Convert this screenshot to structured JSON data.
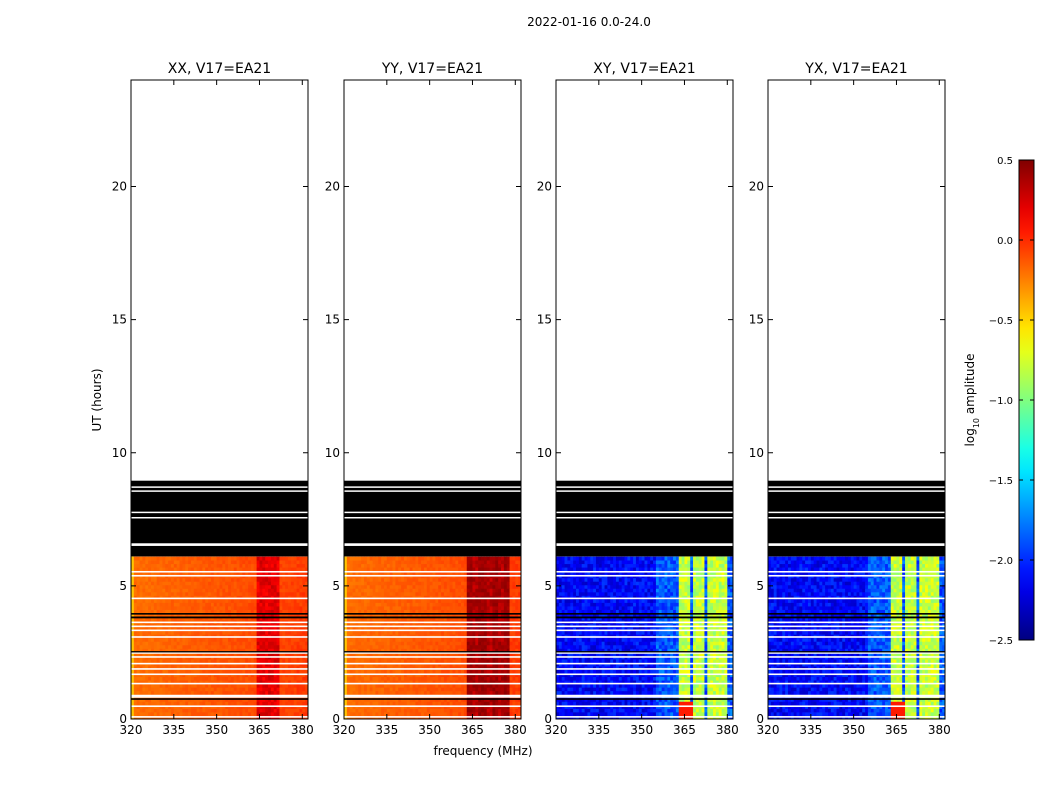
{
  "chart_data": {
    "type": "heatmap",
    "suptitle": "2022-01-16 0.0-24.0",
    "xlabel": "frequency (MHz)",
    "ylabel": "UT (hours)",
    "xlim": [
      320,
      382
    ],
    "ylim": [
      0,
      24
    ],
    "xticks": [
      320,
      335,
      350,
      365,
      380
    ],
    "yticks": [
      0,
      5,
      10,
      15,
      20
    ],
    "colorbar": {
      "label": "log10 amplitude",
      "label_main": "log",
      "label_sub": "10",
      "label_tail": " amplitude",
      "min": -2.5,
      "max": 0.5,
      "ticks": [
        0.5,
        0.0,
        -0.5,
        -1.0,
        -1.5,
        -2.0,
        -2.5
      ],
      "tick_labels": [
        "0.5",
        "0.0",
        "−0.5",
        "−1.0",
        "−1.5",
        "−2.0",
        "−2.5"
      ],
      "colormap": "jet"
    },
    "data_range_hours": [
      0.0,
      6.1
    ],
    "gap_bands_hours": [
      [
        6.15,
        6.5
      ],
      [
        6.6,
        8.95
      ]
    ],
    "panels": [
      {
        "title": "XX, V17=EA21",
        "base_level": -0.2,
        "band_level": 0.2,
        "band_mhz": [
          364,
          372
        ],
        "style": "parallel"
      },
      {
        "title": "YY, V17=EA21",
        "base_level": -0.2,
        "band_level": 0.35,
        "band_mhz": [
          363,
          380
        ],
        "style": "parallel"
      },
      {
        "title": "XY, V17=EA21",
        "base_level": -2.3,
        "band_level": -0.8,
        "band_mhz": [
          364,
          380
        ],
        "style": "cross"
      },
      {
        "title": "YX, V17=EA21",
        "base_level": -2.3,
        "band_level": -0.8,
        "band_mhz": [
          364,
          380
        ],
        "style": "cross"
      }
    ]
  }
}
